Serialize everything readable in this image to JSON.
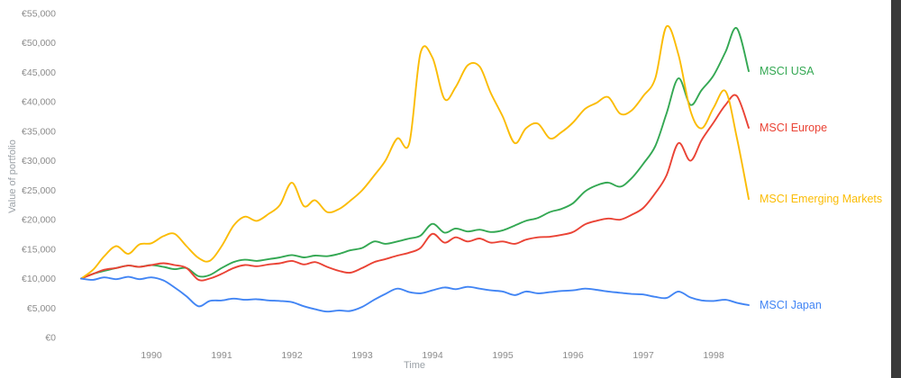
{
  "colors": {
    "background": "#ffffff",
    "tick_text": "#8c8c8c",
    "window_edge": "#3a3a3a"
  },
  "chart_data": {
    "type": "line",
    "title": "",
    "xlabel": "Time",
    "ylabel": "Value of portfolio",
    "grid": false,
    "legend_position": "line-end-labels-right",
    "xlim": [
      1989,
      1998.5
    ],
    "ylim": [
      0,
      55000
    ],
    "x_ticks": [
      1990,
      1991,
      1992,
      1993,
      1994,
      1995,
      1996,
      1997,
      1998
    ],
    "y_ticks": [
      0,
      5000,
      10000,
      15000,
      20000,
      25000,
      30000,
      35000,
      40000,
      45000,
      50000,
      55000
    ],
    "y_tick_labels": [
      "€0",
      "€5,000",
      "€10,000",
      "€15,000",
      "€20,000",
      "€25,000",
      "€30,000",
      "€35,000",
      "€40,000",
      "€45,000",
      "€50,000",
      "€55,000"
    ],
    "x": [
      1989,
      1989.17,
      1989.33,
      1989.5,
      1989.67,
      1989.83,
      1990,
      1990.17,
      1990.33,
      1990.5,
      1990.67,
      1990.83,
      1991,
      1991.17,
      1991.33,
      1991.5,
      1991.67,
      1991.83,
      1992,
      1992.17,
      1992.33,
      1992.5,
      1992.67,
      1992.83,
      1993,
      1993.17,
      1993.33,
      1993.5,
      1993.67,
      1993.83,
      1994,
      1994.17,
      1994.33,
      1994.5,
      1994.67,
      1994.83,
      1995,
      1995.17,
      1995.33,
      1995.5,
      1995.67,
      1995.83,
      1996,
      1996.17,
      1996.33,
      1996.5,
      1996.67,
      1996.83,
      1997,
      1997.17,
      1997.33,
      1997.5,
      1997.67,
      1997.83,
      1998,
      1998.17,
      1998.33,
      1998.5
    ],
    "series": [
      {
        "name": "MSCI USA",
        "color": "#34a853",
        "values": [
          10000,
          10800,
          11300,
          11800,
          12200,
          12000,
          12300,
          12000,
          11600,
          11800,
          10400,
          10600,
          11800,
          12800,
          13200,
          13000,
          13300,
          13600,
          14000,
          13600,
          13900,
          13800,
          14200,
          14800,
          15200,
          16300,
          15900,
          16300,
          16800,
          17300,
          19300,
          17800,
          18500,
          18000,
          18300,
          17900,
          18200,
          19000,
          19800,
          20300,
          21300,
          21800,
          22800,
          24800,
          25800,
          26300,
          25600,
          27000,
          29500,
          32500,
          38000,
          44000,
          39500,
          42000,
          44500,
          48500,
          52500,
          45200
        ]
      },
      {
        "name": "MSCI Europe",
        "color": "#ea4335",
        "values": [
          10000,
          10800,
          11500,
          11800,
          12200,
          12000,
          12300,
          12600,
          12300,
          11800,
          9800,
          10000,
          10800,
          11800,
          12300,
          12100,
          12400,
          12600,
          13000,
          12400,
          12800,
          12000,
          11300,
          11000,
          11800,
          12800,
          13300,
          13900,
          14400,
          15200,
          17600,
          16100,
          17000,
          16300,
          16800,
          16100,
          16300,
          15900,
          16600,
          17000,
          17100,
          17400,
          17900,
          19200,
          19800,
          20200,
          20000,
          20800,
          22000,
          24500,
          27500,
          33000,
          30000,
          33500,
          36500,
          39500,
          41000,
          35600
        ]
      },
      {
        "name": "MSCI Emerging Markets",
        "color": "#fbbc05",
        "values": [
          10000,
          11500,
          13800,
          15500,
          14200,
          15800,
          16000,
          17200,
          17600,
          15500,
          13500,
          13000,
          15500,
          19000,
          20500,
          19800,
          21000,
          22500,
          26300,
          22300,
          23300,
          21300,
          21800,
          23200,
          25000,
          27500,
          30000,
          33800,
          33000,
          48300,
          47500,
          40500,
          42500,
          46200,
          46000,
          41500,
          37500,
          33000,
          35500,
          36300,
          33800,
          34800,
          36500,
          38800,
          39800,
          40800,
          38000,
          38500,
          41000,
          44000,
          52800,
          48000,
          38500,
          35500,
          39000,
          41800,
          34000,
          23500
        ]
      },
      {
        "name": "MSCI Japan",
        "color": "#4285f4",
        "values": [
          10000,
          9800,
          10200,
          9900,
          10300,
          9900,
          10200,
          9700,
          8500,
          7000,
          5300,
          6200,
          6300,
          6600,
          6400,
          6500,
          6300,
          6200,
          6000,
          5300,
          4800,
          4400,
          4600,
          4500,
          5200,
          6400,
          7400,
          8300,
          7700,
          7500,
          8000,
          8500,
          8200,
          8600,
          8300,
          8000,
          7800,
          7200,
          7800,
          7500,
          7700,
          7900,
          8000,
          8300,
          8100,
          7800,
          7600,
          7400,
          7300,
          6900,
          6700,
          7800,
          6800,
          6300,
          6200,
          6400,
          5900,
          5500
        ]
      }
    ]
  }
}
